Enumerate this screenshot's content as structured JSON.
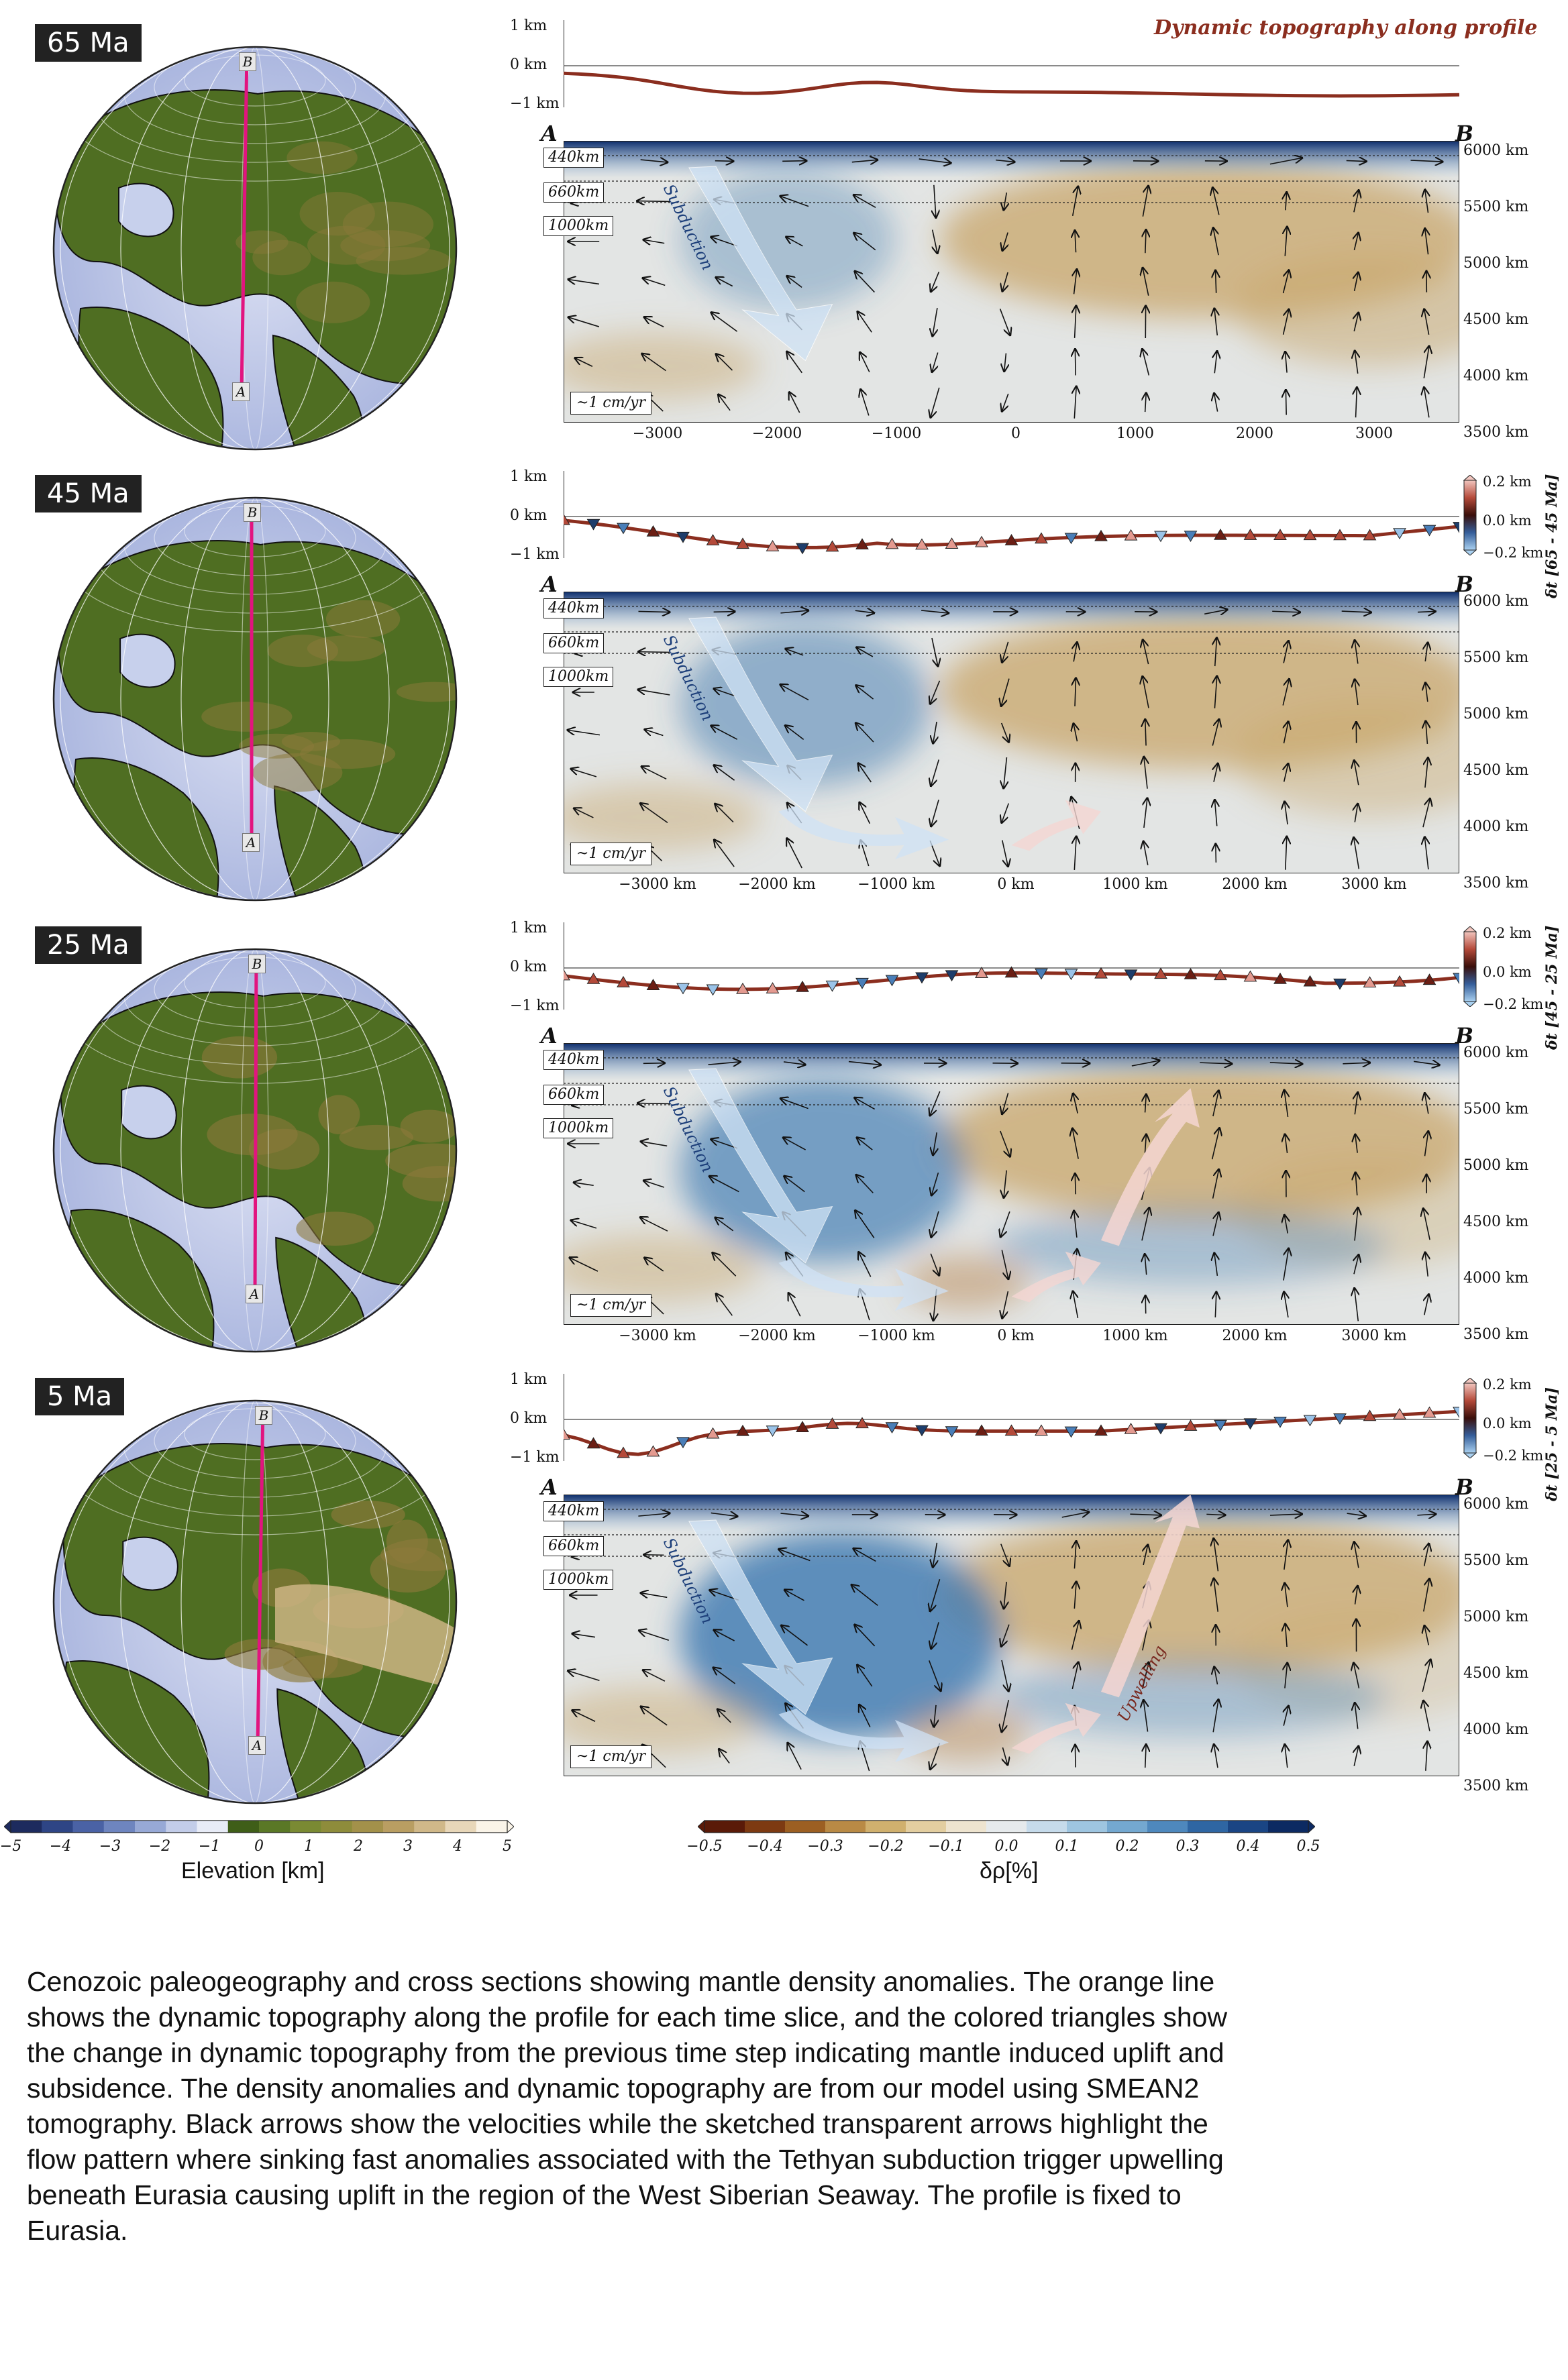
{
  "figure_title": "Dynamic topography along profile",
  "panels": [
    {
      "time": "65 Ma",
      "topo_ticks": [
        "1 km",
        "0 km",
        "−1 km"
      ],
      "x_ticks": [
        "−3000",
        "−2000",
        "−1000",
        "0",
        "1000",
        "2000",
        "3000"
      ],
      "y_ticks": [
        "6000 km",
        "5500 km",
        "5000 km",
        "4500 km",
        "4000 km",
        "3500 km"
      ],
      "depths": [
        "440km",
        "660km",
        "1000km"
      ],
      "velocity_scale": "~1 cm/yr",
      "arrow_labels": [
        "Subduction"
      ],
      "delta_label": "",
      "delta_ticks": []
    },
    {
      "time": "45 Ma",
      "topo_ticks": [
        "1 km",
        "0 km",
        "−1 km"
      ],
      "x_ticks": [
        "−3000 km",
        "−2000 km",
        "−1000 km",
        "0 km",
        "1000 km",
        "2000 km",
        "3000 km"
      ],
      "y_ticks": [
        "6000 km",
        "5500 km",
        "5000 km",
        "4500 km",
        "4000 km",
        "3500 km"
      ],
      "depths": [
        "440km",
        "660km",
        "1000km"
      ],
      "velocity_scale": "~1 cm/yr",
      "arrow_labels": [
        "Subduction"
      ],
      "delta_label": "δt [65 - 45 Ma]",
      "delta_ticks": [
        "0.2 km",
        "0.0 km",
        "−0.2 km"
      ]
    },
    {
      "time": "25 Ma",
      "topo_ticks": [
        "1 km",
        "0 km",
        "−1 km"
      ],
      "x_ticks": [
        "−3000 km",
        "−2000 km",
        "−1000 km",
        "0 km",
        "1000 km",
        "2000 km",
        "3000 km"
      ],
      "y_ticks": [
        "6000 km",
        "5500 km",
        "5000 km",
        "4500 km",
        "4000 km",
        "3500 km"
      ],
      "depths": [
        "440km",
        "660km",
        "1000km"
      ],
      "velocity_scale": "~1 cm/yr",
      "arrow_labels": [
        "Subduction"
      ],
      "delta_label": "δt [45 - 25 Ma]",
      "delta_ticks": [
        "0.2 km",
        "0.0 km",
        "−0.2 km"
      ]
    },
    {
      "time": "5 Ma",
      "topo_ticks": [
        "1 km",
        "0 km",
        "−1 km"
      ],
      "x_ticks": [],
      "y_ticks": [
        "6000 km",
        "5500 km",
        "5000 km",
        "4500 km",
        "4000 km",
        "3500 km"
      ],
      "depths": [
        "440km",
        "660km",
        "1000km"
      ],
      "velocity_scale": "~1 cm/yr",
      "arrow_labels": [
        "Subduction",
        "Upwelling"
      ],
      "delta_label": "δt [25 - 5 Ma]",
      "delta_ticks": [
        "0.2 km",
        "0.0 km",
        "−0.2 km"
      ]
    }
  ],
  "profile_points": {
    "start": "A",
    "end": "B"
  },
  "elevation_colorbar": {
    "label": "Elevation [km]",
    "ticks": [
      "−5",
      "−4",
      "−3",
      "−2",
      "−1",
      "0",
      "1",
      "2",
      "3",
      "4",
      "5"
    ]
  },
  "density_colorbar": {
    "label": "δρ[%]",
    "ticks": [
      "−0.5",
      "−0.4",
      "−0.3",
      "−0.2",
      "−0.1",
      "0.0",
      "0.1",
      "0.2",
      "0.3",
      "0.4",
      "0.5"
    ]
  },
  "caption": "Cenozoic paleogeography and cross sections showing mantle density anomalies. The orange line shows the dynamic topography along the profile for each time slice, and the colored triangles show the change in dynamic topography from the previous time step indicating mantle induced uplift and subsidence. The density anomalies and dynamic topography are from our model using SMEAN2 tomography. Black arrows show the velocities while the sketched transparent arrows highlight the flow pattern where sinking fast anomalies associated with the Tethyan subduction trigger upwelling beneath Eurasia causing uplift in the region of the West Siberian Seaway. The profile is fixed to Eurasia.",
  "colors": {
    "topo_line": "#8b2e1f",
    "title": "#8b2e1f",
    "ocean_deep": "#2b3f7a",
    "land": "#4c6b1d",
    "fast_anomaly": "#3c78b0",
    "slow_anomaly": "#c8a66a"
  }
}
